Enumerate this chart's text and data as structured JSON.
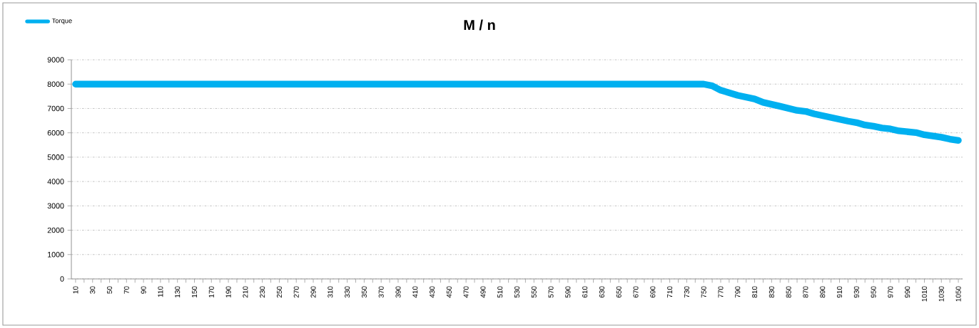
{
  "chart_data": {
    "type": "line",
    "title": "M / n",
    "x": [
      10,
      750,
      760,
      770,
      790,
      810,
      820,
      840,
      860,
      870,
      880,
      900,
      920,
      930,
      940,
      950,
      960,
      970,
      980,
      1000,
      1010,
      1030,
      1040,
      1050
    ],
    "series": [
      {
        "name": "Torque",
        "color": "#00b0f0",
        "values": [
          8000,
          8000,
          7930,
          7750,
          7540,
          7390,
          7250,
          7090,
          6920,
          6880,
          6780,
          6630,
          6480,
          6420,
          6320,
          6270,
          6200,
          6160,
          6080,
          6010,
          5920,
          5820,
          5740,
          5690
        ]
      }
    ],
    "xlim": [
      5,
      1055
    ],
    "xticks": [
      10,
      30,
      50,
      70,
      90,
      110,
      130,
      150,
      170,
      190,
      210,
      230,
      250,
      270,
      290,
      310,
      330,
      350,
      370,
      390,
      410,
      430,
      450,
      470,
      490,
      510,
      530,
      550,
      570,
      590,
      610,
      630,
      650,
      670,
      690,
      710,
      730,
      750,
      770,
      790,
      810,
      830,
      850,
      870,
      890,
      910,
      930,
      950,
      970,
      990,
      1010,
      1030,
      1050
    ],
    "ylim": [
      0,
      9000
    ],
    "yticks": [
      0,
      1000,
      2000,
      3000,
      4000,
      5000,
      6000,
      7000,
      8000,
      9000
    ],
    "grid": "y",
    "legend": "top left",
    "marker": "none",
    "line_style": "solid"
  }
}
